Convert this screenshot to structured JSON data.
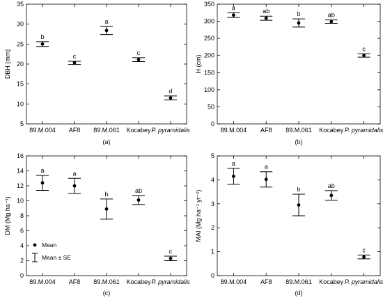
{
  "chart_data": [
    {
      "type": "scatter",
      "panel_label": "(a)",
      "ylabel": "DBH (mm)",
      "ylim": [
        5,
        35
      ],
      "yticks": [
        5,
        10,
        15,
        20,
        25,
        30,
        35
      ],
      "categories": [
        "89.M.004",
        "AF8",
        "89.M.061",
        "Kocabey",
        "P. pyramidalis"
      ],
      "values": [
        25.0,
        20.3,
        28.4,
        21.1,
        11.5
      ],
      "se": [
        0.6,
        0.4,
        1.0,
        0.5,
        0.5
      ],
      "letters": [
        "b",
        "c",
        "a",
        "c",
        "d"
      ]
    },
    {
      "type": "scatter",
      "panel_label": "(b)",
      "ylabel": "H (cm)",
      "ylim": [
        0,
        350
      ],
      "yticks": [
        0,
        50,
        100,
        150,
        200,
        250,
        300,
        350
      ],
      "categories": [
        "89.M.004",
        "AF8",
        "89.M.061",
        "Kocabey",
        "P. pyramidalis"
      ],
      "values": [
        318,
        309,
        295,
        299,
        200
      ],
      "se": [
        7,
        6,
        12,
        5,
        5
      ],
      "letters": [
        "a",
        "ab",
        "b",
        "ab",
        "c"
      ]
    },
    {
      "type": "scatter",
      "panel_label": "(c)",
      "ylabel": "DM (Mg ha⁻¹)",
      "ylim": [
        0,
        16
      ],
      "yticks": [
        0,
        2,
        4,
        6,
        8,
        10,
        12,
        14,
        16
      ],
      "categories": [
        "89.M.004",
        "AF8",
        "89.M.061",
        "Kocabey",
        "P. pyramidalis"
      ],
      "values": [
        12.4,
        12.0,
        8.9,
        10.1,
        2.3
      ],
      "se": [
        1.0,
        1.0,
        1.35,
        0.6,
        0.3
      ],
      "letters": [
        "a",
        "a",
        "b",
        "ab",
        "c"
      ],
      "legend": {
        "mean": "Mean",
        "se": "Mean ± SE"
      }
    },
    {
      "type": "scatter",
      "panel_label": "(d)",
      "ylabel": "MAI (Mg ha⁻¹ yr⁻¹)",
      "ylim": [
        0,
        5
      ],
      "yticks": [
        0,
        1,
        2,
        3,
        4,
        5
      ],
      "categories": [
        "89.M.004",
        "AF8",
        "89.M.061",
        "Kocabey",
        "P. pyramidalis"
      ],
      "values": [
        4.15,
        4.02,
        2.95,
        3.35,
        0.78
      ],
      "se": [
        0.33,
        0.32,
        0.45,
        0.2,
        0.08
      ],
      "letters": [
        "a",
        "a",
        "b",
        "ab",
        "c"
      ]
    }
  ]
}
